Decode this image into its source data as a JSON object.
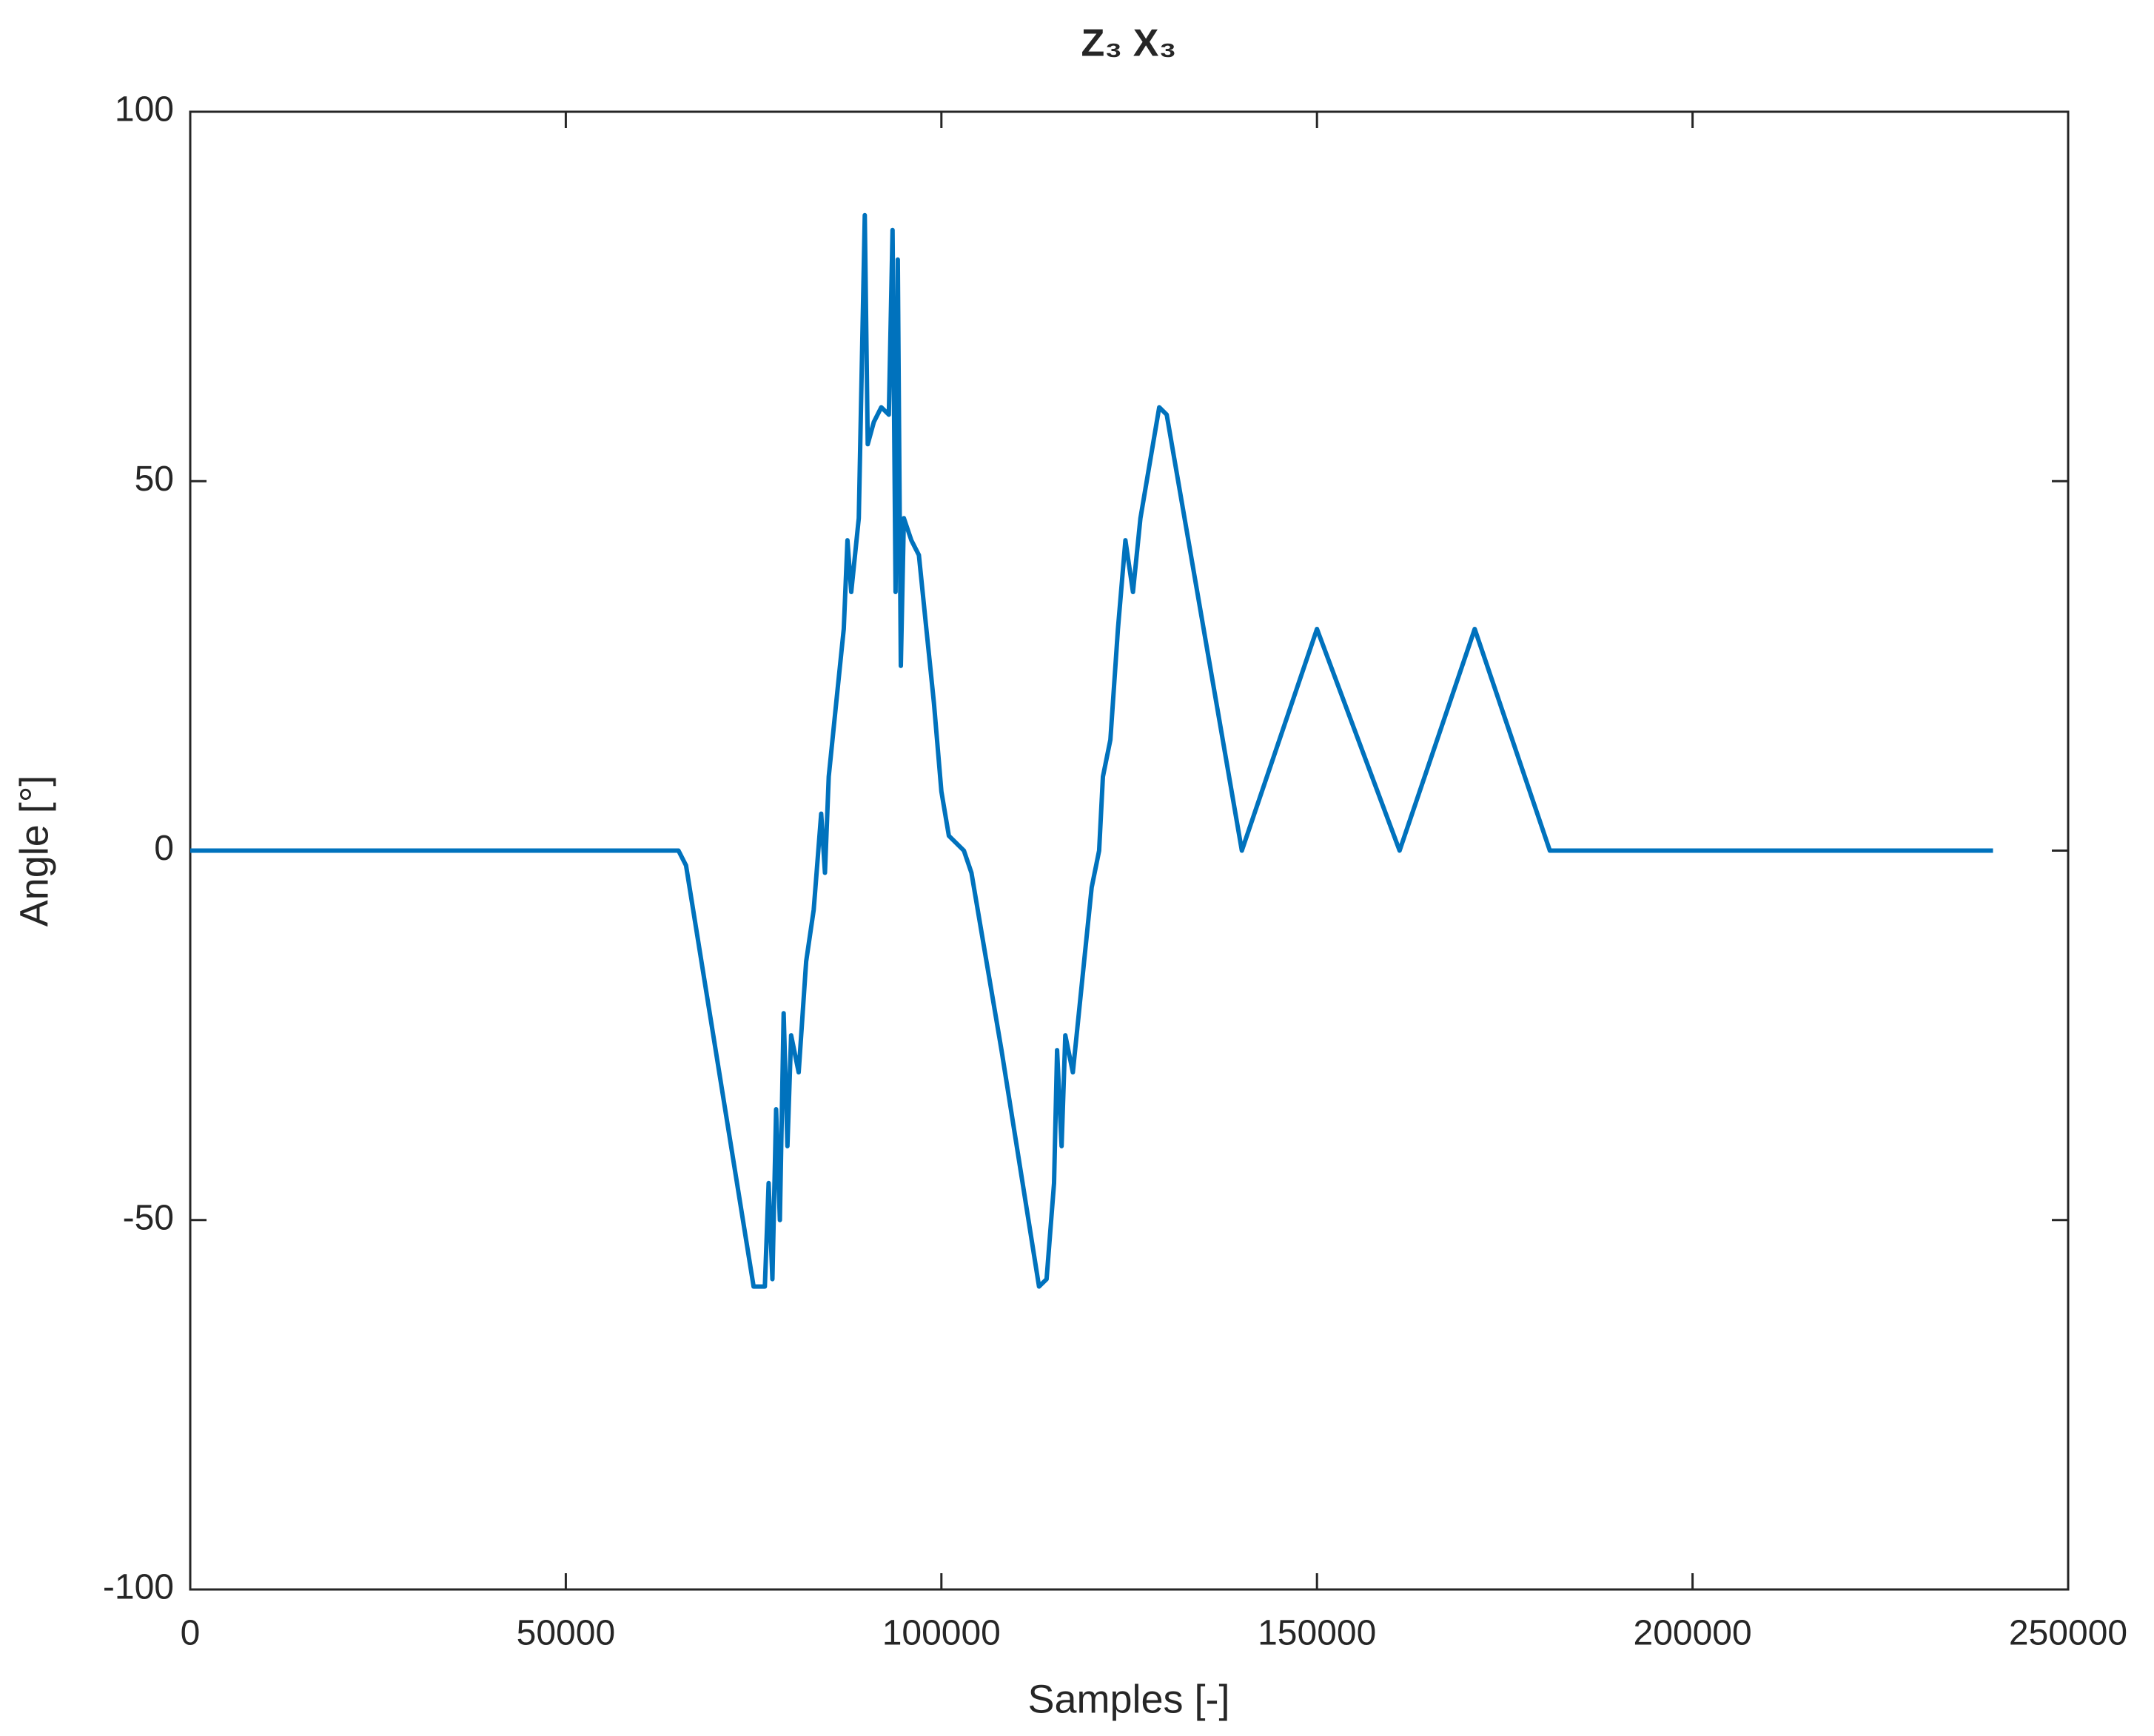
{
  "chart_data": {
    "type": "line",
    "title": "Z₃ X₃",
    "x_label": "Samples [-]",
    "y_label": "Angle [°]",
    "x": [
      0,
      65000,
      66000,
      75000,
      76500,
      77000,
      77500,
      78000,
      78500,
      79000,
      79500,
      80000,
      81000,
      82000,
      83000,
      84000,
      84500,
      85000,
      86000,
      87000,
      87500,
      88000,
      89000,
      89800,
      90200,
      91000,
      92000,
      93000,
      93500,
      93900,
      94200,
      94600,
      95000,
      96000,
      97000,
      98000,
      99000,
      100000,
      101000,
      103000,
      104000,
      108000,
      113000,
      114000,
      115000,
      115400,
      116000,
      116500,
      117500,
      119000,
      120000,
      121000,
      121500,
      122500,
      123500,
      124500,
      125500,
      126500,
      129000,
      130000,
      140000,
      150000,
      161000,
      171000,
      181000,
      240000
    ],
    "values": [
      0,
      0,
      -2,
      -59,
      -59,
      -45,
      -58,
      -35,
      -50,
      -22,
      -40,
      -25,
      -30,
      -15,
      -8,
      5,
      -3,
      10,
      20,
      30,
      42,
      35,
      45,
      86,
      55,
      58,
      60,
      59,
      84,
      35,
      80,
      25,
      45,
      42,
      40,
      30,
      20,
      8,
      2,
      0,
      -3,
      -27,
      -59,
      -58,
      -45,
      -27,
      -40,
      -25,
      -30,
      -15,
      -5,
      0,
      10,
      15,
      30,
      42,
      35,
      45,
      60,
      59,
      0,
      30,
      0,
      30,
      0,
      0
    ],
    "color": "#0072bd",
    "xlim": [
      0,
      250000
    ],
    "xticks": [
      0,
      50000,
      100000,
      150000,
      200000,
      250000
    ],
    "ylim": [
      -100,
      100
    ],
    "yticks": [
      -100,
      -50,
      0,
      50,
      100
    ]
  }
}
